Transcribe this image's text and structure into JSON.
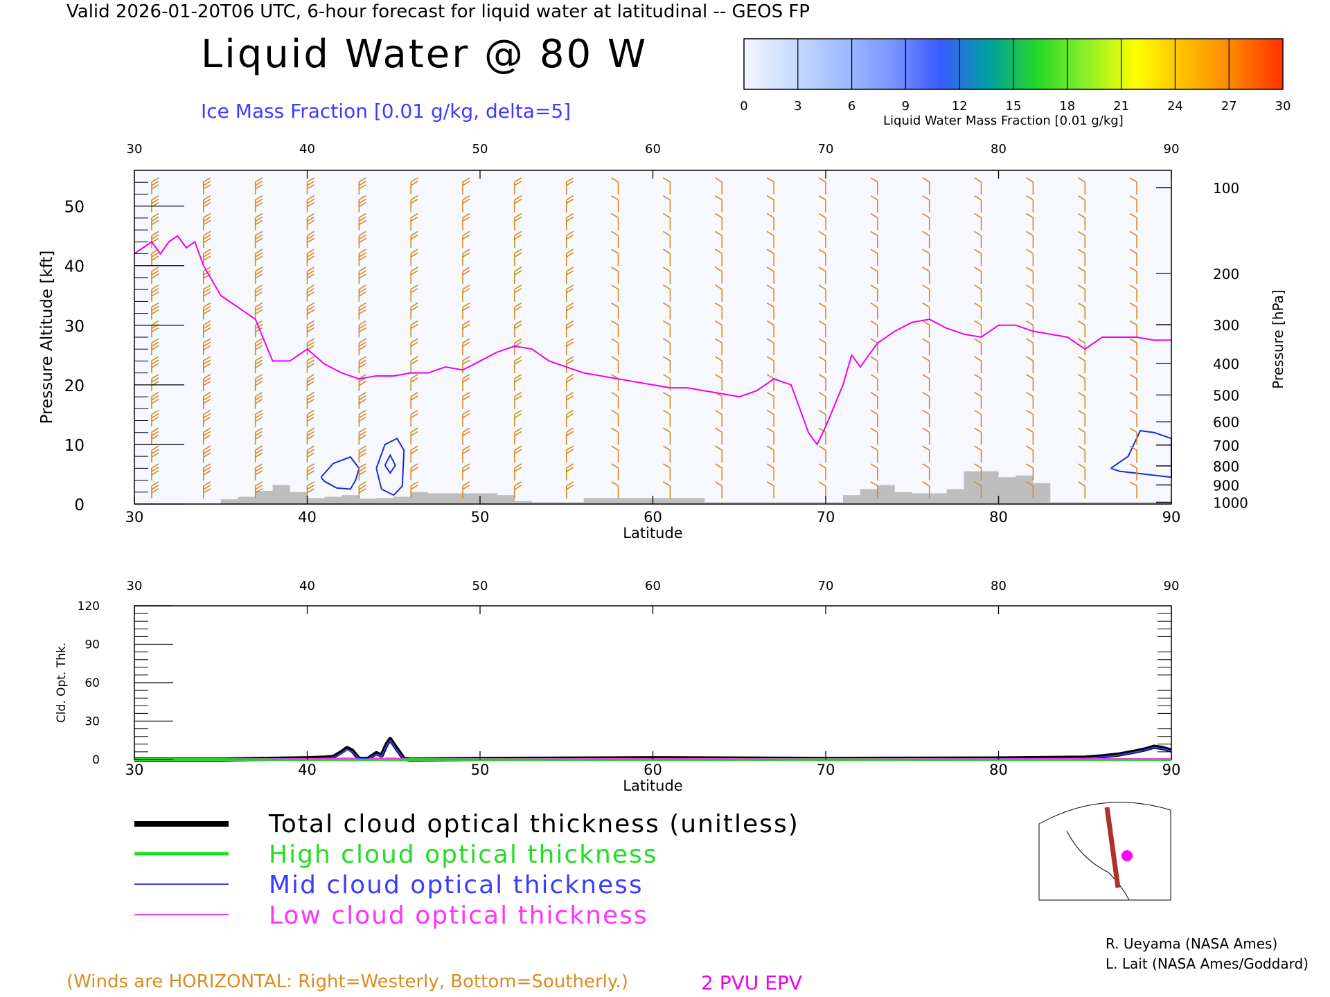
{
  "header": {
    "title": "Valid 2026-01-20T06 UTC, 6-hour forecast for liquid water at latitudinal -- GEOS FP",
    "main_title": "Liquid Water @ 80 W",
    "ice_label": "Ice Mass Fraction [0.01 g/kg, delta=5]"
  },
  "colorbar": {
    "label": "Liquid Water Mass Fraction [0.01 g/kg]",
    "ticks": [
      "0",
      "3",
      "6",
      "9",
      "12",
      "15",
      "18",
      "21",
      "24",
      "27",
      "30"
    ],
    "colors": [
      "#f4f6ff",
      "#c8dcff",
      "#a2bcff",
      "#7c96ff",
      "#3a5cff",
      "#00a0a0",
      "#28d828",
      "#8cf028",
      "#ffff00",
      "#ffbe00",
      "#ff8200",
      "#ff3200"
    ]
  },
  "colors": {
    "wind_barbs": "#d08a1e",
    "ice_contour": "#1a2ccc",
    "pvu_line": "#ee00ee",
    "terrain": "#bebebe",
    "total": "#000000",
    "high": "#22dd22",
    "mid": "#3b3bff",
    "low": "#ff33ff"
  },
  "chart_data": [
    {
      "type": "line",
      "name": "cross-section",
      "xlabel": "Latitude",
      "ylabel": "Pressure Altitude [kft]",
      "y2label": "Pressure [hPa]",
      "xlim": [
        30,
        90
      ],
      "ylim": [
        0,
        56
      ],
      "x_ticks": [
        "30",
        "40",
        "50",
        "60",
        "70",
        "80",
        "90"
      ],
      "y_ticks": [
        "0",
        "10",
        "20",
        "30",
        "40",
        "50"
      ],
      "pressure_ticks": [
        {
          "label": "100",
          "kft": 53.1
        },
        {
          "label": "200",
          "kft": 38.7
        },
        {
          "label": "300",
          "kft": 30.1
        },
        {
          "label": "400",
          "kft": 23.6
        },
        {
          "label": "500",
          "kft": 18.3
        },
        {
          "label": "600",
          "kft": 13.8
        },
        {
          "label": "700",
          "kft": 9.9
        },
        {
          "label": "800",
          "kft": 6.4
        },
        {
          "label": "900",
          "kft": 3.2
        },
        {
          "label": "1000",
          "kft": 0.3
        }
      ],
      "pv2_line": {
        "lat": [
          30,
          31,
          31.5,
          32,
          32.5,
          33,
          33.5,
          34,
          35,
          36,
          37,
          38,
          39,
          40,
          41,
          42,
          43,
          44,
          45,
          46,
          47,
          48,
          49,
          50,
          51,
          52,
          53,
          54,
          55,
          56,
          57,
          58,
          59,
          60,
          61,
          62,
          63,
          64,
          65,
          66,
          67,
          68,
          69,
          69.5,
          70,
          71,
          71.5,
          72,
          73,
          74,
          75,
          76,
          77,
          78,
          79,
          80,
          81,
          82,
          83,
          84,
          85,
          86,
          87,
          88,
          89,
          90
        ],
        "kft": [
          42,
          44,
          42,
          44,
          45,
          43,
          44,
          40,
          35,
          33,
          31,
          24,
          24,
          26,
          23.5,
          22,
          21,
          21.5,
          21.5,
          22,
          22,
          23,
          22.5,
          24,
          25.5,
          26.5,
          26,
          24,
          23,
          22,
          21.5,
          21,
          20.5,
          20,
          19.5,
          19.5,
          19,
          18.5,
          18,
          19,
          21,
          20,
          12,
          10,
          13,
          20,
          25,
          23,
          27,
          29,
          30.5,
          31,
          29.5,
          28.5,
          28,
          30,
          30,
          29,
          28.5,
          28,
          26,
          28,
          28,
          28,
          27.5,
          27.5
        ]
      },
      "terrain": {
        "lat": [
          35,
          36,
          37,
          38,
          39,
          40,
          41,
          42,
          43,
          44,
          45,
          46,
          47,
          48,
          49,
          50,
          51,
          52,
          53,
          54,
          55,
          56,
          57,
          58,
          59,
          60,
          61,
          62,
          63,
          64,
          65,
          66,
          67,
          68,
          69,
          70,
          71,
          72,
          73,
          74,
          75,
          76,
          77,
          78,
          79,
          80,
          81,
          82,
          83,
          84,
          85,
          86,
          87,
          88,
          89,
          90
        ],
        "kft": [
          0.8,
          1.2,
          2.2,
          3.2,
          2.0,
          1.0,
          1.2,
          1.5,
          0.9,
          1.0,
          1.2,
          2.0,
          1.8,
          1.8,
          1.8,
          1.8,
          1.5,
          0.5,
          0.3,
          0.3,
          0.3,
          1.0,
          1.0,
          1.0,
          1.0,
          1.0,
          1.0,
          1.0,
          0.3,
          0.3,
          0.3,
          0.3,
          0.3,
          0.3,
          0.3,
          0.3,
          1.5,
          2.5,
          3.2,
          2.0,
          1.8,
          1.8,
          2.5,
          5.5,
          5.5,
          4.5,
          4.8,
          3.5,
          0.3,
          0.3,
          0.3,
          0.3,
          0.3,
          0.3,
          0.3,
          0.3
        ]
      },
      "ice_contours_5": [
        {
          "lat": [
            40.8,
            41.5,
            42.5,
            43,
            42.8,
            42.5,
            41.7,
            41,
            40.8
          ],
          "kft": [
            4.5,
            6.8,
            7.9,
            6,
            4.0,
            2.5,
            2.7,
            3.8,
            4.5
          ]
        },
        {
          "lat": [
            44,
            44.5,
            45.2,
            45.6,
            45.5,
            45.0,
            44.3,
            44.0
          ],
          "kft": [
            6,
            10,
            11,
            9,
            3,
            1.5,
            2.5,
            6
          ]
        },
        {
          "lat": [
            86.5,
            87.5,
            88.2,
            89,
            90,
            90,
            88.5,
            87,
            86.5
          ],
          "kft": [
            6,
            8,
            12.3,
            12,
            11,
            4.5,
            5,
            5.5,
            6
          ]
        }
      ],
      "ice_contours_10": [
        {
          "lat": [
            44.5,
            44.8,
            45.1,
            44.8,
            44.5
          ],
          "kft": [
            6.5,
            8.2,
            6.5,
            5.2,
            6.5
          ]
        }
      ]
    },
    {
      "type": "line",
      "name": "cloud-optical-thickness",
      "xlabel": "Latitude",
      "ylabel": "Cld. Opt. Thk.",
      "xlim": [
        30,
        90
      ],
      "ylim": [
        0,
        120
      ],
      "x_ticks": [
        "30",
        "40",
        "50",
        "60",
        "70",
        "80",
        "90"
      ],
      "y_ticks": [
        "0",
        "30",
        "60",
        "90",
        "120"
      ],
      "x": [
        30,
        35,
        40,
        41,
        41.5,
        42,
        42.3,
        42.6,
        43,
        43.5,
        44,
        44.3,
        44.6,
        44.8,
        45.1,
        45.6,
        46,
        50,
        60,
        70,
        80,
        85,
        86,
        87,
        88,
        88.5,
        89,
        89.5,
        90
      ],
      "series": [
        {
          "name": "Total cloud optical thickness (unitless)",
          "values": [
            0,
            0,
            1,
            1.5,
            2,
            6,
            9,
            7,
            0.5,
            0.5,
            5,
            3,
            12,
            16,
            10,
            0.5,
            0,
            0.5,
            1,
            0.5,
            0.8,
            1.5,
            2.5,
            4,
            6.5,
            8,
            10,
            9,
            7
          ]
        },
        {
          "name": "High cloud optical thickness",
          "values": [
            0,
            0,
            0,
            0,
            0,
            0,
            0,
            0,
            0,
            0,
            0,
            0,
            0,
            0,
            0,
            0,
            0,
            0,
            0,
            0,
            0,
            0,
            0,
            0,
            0,
            0,
            0,
            0,
            0
          ]
        },
        {
          "name": "Mid cloud optical thickness",
          "values": [
            0,
            0,
            0.5,
            1,
            1.5,
            5,
            8,
            6,
            0.5,
            0.5,
            4,
            2.5,
            11,
            15,
            9,
            0.3,
            0,
            0.2,
            0.5,
            0.2,
            0.4,
            1.0,
            2.0,
            3.5,
            6,
            7.5,
            9.5,
            8.5,
            6.5
          ]
        },
        {
          "name": "Low cloud optical thickness",
          "values": [
            0,
            0,
            0.5,
            0.5,
            0.5,
            1,
            1,
            1,
            0,
            0,
            1,
            0.5,
            1,
            1,
            1,
            0.2,
            0,
            0.3,
            0.5,
            0.3,
            0.4,
            0.5,
            0.5,
            0.5,
            0.5,
            0.5,
            0.5,
            0.5,
            0.5
          ]
        }
      ]
    }
  ],
  "legend": {
    "total": "Total cloud optical thickness (unitless)",
    "high": "High cloud optical thickness",
    "mid": "Mid cloud optical thickness",
    "low": "Low cloud optical thickness"
  },
  "footer": {
    "winds_note": "(Winds are HORIZONTAL: Right=Westerly, Bottom=Southerly.)",
    "pvu_label": "2 PVU EPV",
    "credit_1": "R. Ueyama (NASA Ames)",
    "credit_2": "L. Lait (NASA Ames/Goddard)"
  }
}
